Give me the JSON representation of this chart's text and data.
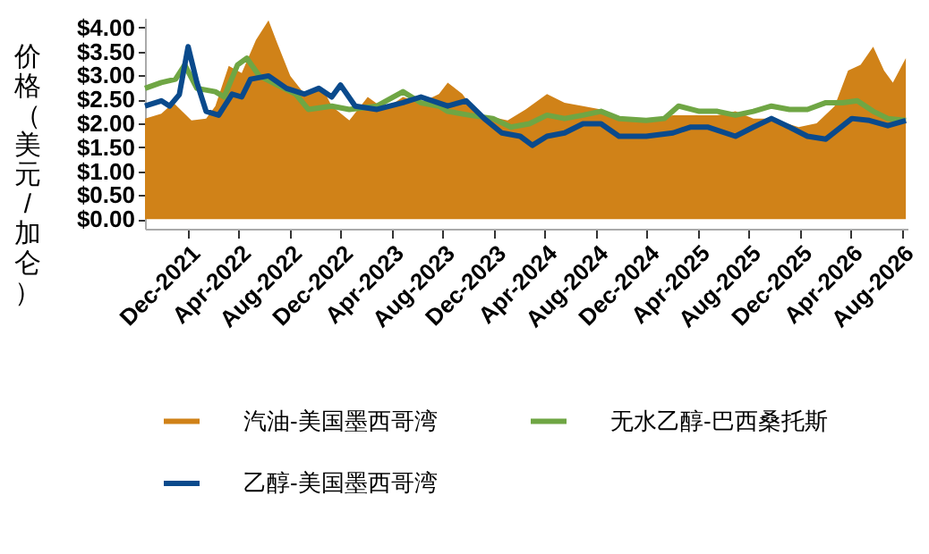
{
  "chart_data": {
    "type": "line",
    "ylabel": "价格（美元/加仑）",
    "xlim": [
      "2021-08-20",
      "2026-08-15"
    ],
    "xticks": [
      {
        "value": "2021-12-01",
        "label": "Dec-2021"
      },
      {
        "value": "2022-04-01",
        "label": "Apr-2022"
      },
      {
        "value": "2022-08-01",
        "label": "Aug-2022"
      },
      {
        "value": "2022-12-01",
        "label": "Dec-2022"
      },
      {
        "value": "2023-04-01",
        "label": "Apr-2023"
      },
      {
        "value": "2023-08-01",
        "label": "Aug-2023"
      },
      {
        "value": "2023-12-01",
        "label": "Dec-2023"
      },
      {
        "value": "2024-04-01",
        "label": "Apr-2024"
      },
      {
        "value": "2024-08-01",
        "label": "Aug-2024"
      },
      {
        "value": "2024-12-01",
        "label": "Dec-2024"
      },
      {
        "value": "2025-04-01",
        "label": "Apr-2025"
      },
      {
        "value": "2025-08-01",
        "label": "Aug-2025"
      },
      {
        "value": "2025-12-01",
        "label": "Dec-2025"
      },
      {
        "value": "2026-04-01",
        "label": "Apr-2026"
      },
      {
        "value": "2026-08-01",
        "label": "Aug-2026"
      }
    ],
    "ylim": [
      -0.2,
      4.2
    ],
    "yticks": [
      {
        "value": 0,
        "label": "$0.00"
      },
      {
        "value": 0.5,
        "label": "$0.50"
      },
      {
        "value": 1,
        "label": "$1.00"
      },
      {
        "value": 1.5,
        "label": "$1.50"
      },
      {
        "value": 2,
        "label": "$2.00"
      },
      {
        "value": 2.5,
        "label": "$2.50"
      },
      {
        "value": 3,
        "label": "$3.00"
      },
      {
        "value": 3.5,
        "label": "$3.50"
      },
      {
        "value": 4,
        "label": "$4.00"
      }
    ],
    "grid": false,
    "legend": "bottom",
    "series": [
      {
        "name": "汽油-美国墨西哥湾",
        "type": "area",
        "color": "#d08218",
        "x": [
          "2021-08-20",
          "2021-09-28",
          "2021-10-27",
          "2021-12-09",
          "2022-01-13",
          "2022-02-04",
          "2022-03-08",
          "2022-04-08",
          "2022-05-12",
          "2022-06-11",
          "2022-07-02",
          "2022-08-02",
          "2022-09-05",
          "2022-10-18",
          "2022-11-09",
          "2022-12-21",
          "2023-02-03",
          "2023-03-16",
          "2023-04-28",
          "2023-06-10",
          "2023-07-23",
          "2023-08-13",
          "2023-09-17",
          "2023-10-17",
          "2023-11-08",
          "2024-01-03",
          "2024-02-15",
          "2024-04-06",
          "2024-05-18",
          "2024-07-01",
          "2024-08-13",
          "2024-09-25",
          "2024-11-29",
          "2025-02-01",
          "2025-04-05",
          "2025-05-18",
          "2025-06-30",
          "2025-08-12",
          "2025-09-24",
          "2025-11-28",
          "2026-01-10",
          "2026-02-22",
          "2026-03-26",
          "2026-04-25",
          "2026-05-25",
          "2026-06-20",
          "2026-07-11",
          "2026-08-11"
        ],
        "values": [
          2.1,
          2.2,
          2.43,
          2.06,
          2.1,
          2.36,
          3.2,
          3.05,
          3.74,
          4.15,
          3.67,
          2.99,
          2.61,
          2.73,
          2.36,
          2.06,
          2.55,
          2.29,
          2.55,
          2.43,
          2.61,
          2.85,
          2.61,
          2.25,
          2.17,
          2.06,
          2.29,
          2.61,
          2.43,
          2.36,
          2.29,
          2.1,
          2.06,
          2.17,
          2.17,
          2.17,
          2.25,
          2.1,
          2.1,
          1.92,
          2.0,
          2.36,
          3.1,
          3.22,
          3.6,
          3.1,
          2.85,
          3.36
        ]
      },
      {
        "name": "无水乙醇-巴西桑托斯",
        "color": "#6fa644",
        "x": [
          "2021-08-20",
          "2021-09-28",
          "2021-11-01",
          "2021-11-23",
          "2021-12-22",
          "2022-02-04",
          "2022-02-25",
          "2022-03-29",
          "2022-04-20",
          "2022-05-20",
          "2022-07-02",
          "2022-08-15",
          "2022-09-14",
          "2022-11-09",
          "2022-12-21",
          "2023-02-25",
          "2023-04-28",
          "2023-06-10",
          "2023-07-23",
          "2023-08-13",
          "2023-10-04",
          "2023-11-29",
          "2024-01-11",
          "2024-02-24",
          "2024-04-06",
          "2024-05-18",
          "2024-07-01",
          "2024-08-13",
          "2024-09-25",
          "2024-11-29",
          "2025-01-11",
          "2025-02-14",
          "2025-04-05",
          "2025-05-18",
          "2025-06-30",
          "2025-08-12",
          "2025-09-24",
          "2025-11-06",
          "2025-12-19",
          "2026-02-01",
          "2026-03-13",
          "2026-04-17",
          "2026-05-25",
          "2026-06-29",
          "2026-08-11"
        ],
        "values": [
          2.73,
          2.85,
          2.92,
          3.22,
          2.73,
          2.66,
          2.55,
          3.22,
          3.36,
          2.99,
          2.8,
          2.61,
          2.29,
          2.36,
          2.29,
          2.36,
          2.66,
          2.43,
          2.36,
          2.25,
          2.17,
          2.1,
          1.92,
          1.99,
          2.17,
          2.1,
          2.17,
          2.25,
          2.1,
          2.06,
          2.1,
          2.36,
          2.25,
          2.25,
          2.17,
          2.25,
          2.36,
          2.29,
          2.29,
          2.43,
          2.43,
          2.47,
          2.25,
          2.1,
          2.06
        ]
      },
      {
        "name": "乙醇-美国墨西哥湾",
        "color": "#0a4a8c",
        "x": [
          "2021-08-20",
          "2021-09-28",
          "2021-10-18",
          "2021-11-10",
          "2021-12-01",
          "2021-12-22",
          "2022-01-13",
          "2022-02-12",
          "2022-03-16",
          "2022-04-08",
          "2022-04-29",
          "2022-06-11",
          "2022-07-24",
          "2022-09-05",
          "2022-10-09",
          "2022-11-09",
          "2022-11-30",
          "2023-01-04",
          "2023-02-25",
          "2023-04-28",
          "2023-06-10",
          "2023-08-13",
          "2023-09-26",
          "2023-11-08",
          "2023-12-20",
          "2024-02-02",
          "2024-03-02",
          "2024-04-06",
          "2024-05-18",
          "2024-07-01",
          "2024-08-13",
          "2024-09-25",
          "2024-11-29",
          "2025-02-01",
          "2025-03-14",
          "2025-04-26",
          "2025-06-30",
          "2025-08-12",
          "2025-09-24",
          "2025-11-06",
          "2025-12-19",
          "2026-02-01",
          "2026-04-04",
          "2026-05-16",
          "2026-06-29",
          "2026-08-11"
        ],
        "values": [
          2.36,
          2.47,
          2.36,
          2.6,
          3.6,
          2.85,
          2.25,
          2.17,
          2.61,
          2.55,
          2.92,
          2.99,
          2.73,
          2.61,
          2.73,
          2.55,
          2.8,
          2.36,
          2.29,
          2.43,
          2.55,
          2.36,
          2.47,
          2.1,
          1.8,
          1.73,
          1.54,
          1.73,
          1.8,
          1.99,
          1.99,
          1.73,
          1.73,
          1.8,
          1.92,
          1.92,
          1.73,
          1.92,
          2.1,
          1.92,
          1.73,
          1.67,
          2.1,
          2.06,
          1.95,
          2.06
        ]
      }
    ]
  }
}
